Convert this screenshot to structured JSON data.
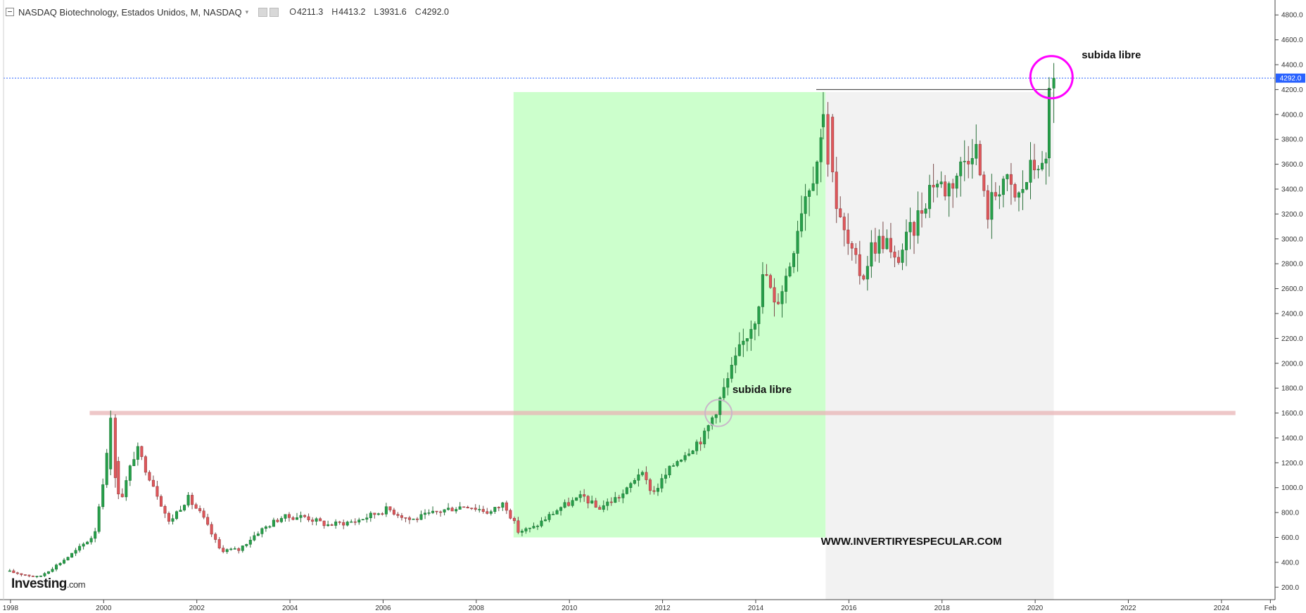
{
  "header": {
    "title": "NASDAQ Biotechnology, Estados Unidos, M, NASDAQ",
    "caret": "▾",
    "ohlc": [
      {
        "k": "O",
        "v": "4211.3"
      },
      {
        "k": "H",
        "v": "4413.2"
      },
      {
        "k": "L",
        "v": "3931.6"
      },
      {
        "k": "C",
        "v": "4292.0"
      }
    ]
  },
  "brand": {
    "name": "Investing",
    "domain": ".com"
  },
  "colors": {
    "up": "#26a04a",
    "down": "#e0575b",
    "green_zone": "#ccffcc",
    "gray_zone": "#f2f2f2",
    "support_line": "#e8b4b6",
    "circle_magenta": "#ff00ff",
    "circle_gray": "#c9b7c9",
    "price_tag": "#2962ff"
  },
  "chart_data": {
    "type": "candlestick",
    "title": "NASDAQ Biotechnology, Estados Unidos, M, NASDAQ",
    "interval": "monthly",
    "x_tick_labels": [
      "1998",
      "2000",
      "2002",
      "2004",
      "2006",
      "2008",
      "2010",
      "2012",
      "2014",
      "2016",
      "2018",
      "2020",
      "2022",
      "2024",
      "Feb"
    ],
    "y_tick_labels": [
      "200.0",
      "400.0",
      "600.0",
      "800.0",
      "1000.0",
      "1200.0",
      "1400.0",
      "1600.0",
      "1800.0",
      "2000.0",
      "2200.0",
      "2400.0",
      "2600.0",
      "2800.0",
      "3000.0",
      "3200.0",
      "3400.0",
      "3600.0",
      "3800.0",
      "4000.0",
      "4200.0",
      "4400.0",
      "4600.0",
      "4800.0"
    ],
    "ylim": [
      100,
      4920
    ],
    "xlim": [
      1997.85,
      2025.15
    ],
    "last_price": {
      "value": 4292.0,
      "label": "4292.0"
    },
    "ohlc_last": {
      "open": 4211.3,
      "high": 4413.2,
      "low": 3931.6,
      "close": 4292.0
    },
    "anchors": [
      {
        "x": 1997.9,
        "y": 330
      },
      {
        "x": 1998.6,
        "y": 280
      },
      {
        "x": 1999.0,
        "y": 380
      },
      {
        "x": 1999.4,
        "y": 490
      },
      {
        "x": 1999.8,
        "y": 620
      },
      {
        "x": 2000.15,
        "y": 1450
      },
      {
        "x": 2000.35,
        "y": 880
      },
      {
        "x": 2000.7,
        "y": 1320
      },
      {
        "x": 2001.1,
        "y": 1000
      },
      {
        "x": 2001.4,
        "y": 720
      },
      {
        "x": 2001.8,
        "y": 920
      },
      {
        "x": 2002.1,
        "y": 780
      },
      {
        "x": 2002.5,
        "y": 500
      },
      {
        "x": 2002.9,
        "y": 500
      },
      {
        "x": 2003.3,
        "y": 640
      },
      {
        "x": 2003.8,
        "y": 760
      },
      {
        "x": 2004.3,
        "y": 770
      },
      {
        "x": 2004.8,
        "y": 700
      },
      {
        "x": 2005.4,
        "y": 730
      },
      {
        "x": 2006.1,
        "y": 830
      },
      {
        "x": 2006.6,
        "y": 740
      },
      {
        "x": 2007.3,
        "y": 820
      },
      {
        "x": 2007.8,
        "y": 860
      },
      {
        "x": 2008.3,
        "y": 800
      },
      {
        "x": 2008.6,
        "y": 880
      },
      {
        "x": 2008.9,
        "y": 650
      },
      {
        "x": 2009.2,
        "y": 670
      },
      {
        "x": 2009.8,
        "y": 840
      },
      {
        "x": 2010.3,
        "y": 930
      },
      {
        "x": 2010.6,
        "y": 830
      },
      {
        "x": 2011.2,
        "y": 960
      },
      {
        "x": 2011.5,
        "y": 1130
      },
      {
        "x": 2011.8,
        "y": 960
      },
      {
        "x": 2012.3,
        "y": 1220
      },
      {
        "x": 2012.9,
        "y": 1420
      },
      {
        "x": 2013.2,
        "y": 1680
      },
      {
        "x": 2013.6,
        "y": 2050
      },
      {
        "x": 2014.0,
        "y": 2400
      },
      {
        "x": 2014.2,
        "y": 2760
      },
      {
        "x": 2014.4,
        "y": 2450
      },
      {
        "x": 2014.7,
        "y": 2750
      },
      {
        "x": 2015.0,
        "y": 3300
      },
      {
        "x": 2015.3,
        "y": 3620
      },
      {
        "x": 2015.55,
        "y": 4050
      },
      {
        "x": 2015.75,
        "y": 3200
      },
      {
        "x": 2016.1,
        "y": 2820
      },
      {
        "x": 2016.3,
        "y": 2700
      },
      {
        "x": 2016.5,
        "y": 2950
      },
      {
        "x": 2016.8,
        "y": 3000
      },
      {
        "x": 2016.95,
        "y": 2780
      },
      {
        "x": 2017.4,
        "y": 3100
      },
      {
        "x": 2017.8,
        "y": 3480
      },
      {
        "x": 2018.1,
        "y": 3400
      },
      {
        "x": 2018.4,
        "y": 3580
      },
      {
        "x": 2018.7,
        "y": 3800
      },
      {
        "x": 2018.95,
        "y": 3200
      },
      {
        "x": 2019.3,
        "y": 3500
      },
      {
        "x": 2019.6,
        "y": 3300
      },
      {
        "x": 2019.9,
        "y": 3550
      },
      {
        "x": 2020.1,
        "y": 3650
      },
      {
        "x": 2020.2,
        "y": 3420
      },
      {
        "x": 2020.3,
        "y": 3950
      },
      {
        "x": 2020.4,
        "y": 4292
      }
    ],
    "special_candles": [
      {
        "x": 2000.15,
        "open": 1150,
        "high": 1620,
        "low": 1100,
        "close": 1560
      },
      {
        "x": 2000.25,
        "open": 1560,
        "high": 1590,
        "low": 1000,
        "close": 1080
      },
      {
        "x": 2015.45,
        "open": 3900,
        "high": 4180,
        "low": 3800,
        "close": 4000
      },
      {
        "x": 2015.55,
        "open": 4000,
        "high": 4100,
        "low": 3500,
        "close": 3600
      },
      {
        "x": 2020.3,
        "open": 3650,
        "high": 4300,
        "low": 3500,
        "close": 4211.3
      },
      {
        "x": 2020.4,
        "open": 4211.3,
        "high": 4413.2,
        "low": 3931.6,
        "close": 4292.0
      }
    ],
    "zones": [
      {
        "name": "green-zone",
        "x0": 2008.8,
        "x1": 2015.5,
        "y0": 600,
        "y1": 4180
      },
      {
        "name": "gray-zone",
        "x0": 2015.5,
        "x1": 2020.4,
        "y0": 0,
        "y1": 4180
      }
    ],
    "lines": [
      {
        "name": "support-line",
        "x0": 1999.7,
        "x1": 2024.3,
        "y": 1600
      },
      {
        "name": "resistance-line",
        "x0": 2015.3,
        "x1": 2020.35,
        "y": 4200
      }
    ],
    "annotations": [
      {
        "name": "breakout-label-2013",
        "text": "subida libre",
        "x": 2013.5,
        "y": 1760
      },
      {
        "name": "breakout-label-2020",
        "text": "subida  libre",
        "x": 2021.0,
        "y": 4450
      },
      {
        "name": "watermark-text",
        "text": "WWW.INVERTIRYESPECULAR.COM",
        "x": 2015.4,
        "y": 540
      }
    ],
    "circles": [
      {
        "name": "breakout-circle-2013",
        "x": 2013.2,
        "y": 1600
      },
      {
        "name": "breakout-circle-2020",
        "x": 2020.35,
        "y": 4300
      }
    ]
  }
}
